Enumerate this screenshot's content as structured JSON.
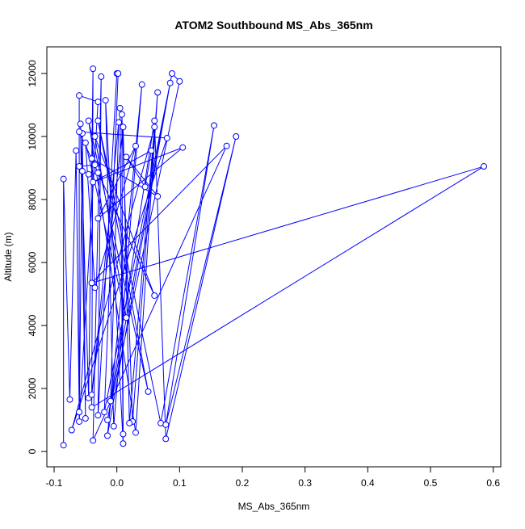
{
  "chart_data": {
    "type": "scatter",
    "title": "ATOM2 Southbound MS_Abs_365nm",
    "xlabel": "MS_Abs_365nm",
    "ylabel": "Altitude (m)",
    "xlim": [
      -0.1116,
      0.612
    ],
    "ylim": [
      -487,
      12846
    ],
    "xticks": [
      -0.1,
      {
        "value": 0,
        "label": "0.0"
      },
      0.1,
      0.2,
      0.3,
      0.4,
      0.5,
      0.6
    ],
    "yticks": [
      0,
      2000,
      4000,
      6000,
      8000,
      10000,
      12000
    ],
    "series": [
      {
        "color": "#0000ff",
        "x": [
          -0.085,
          -0.085,
          -0.075,
          -0.065,
          -0.06,
          -0.06,
          -0.03,
          -0.06,
          -0.055,
          -0.05,
          -0.058,
          -0.045,
          -0.038,
          -0.04,
          0.585,
          -0.04,
          0.175,
          -0.038,
          -0.025,
          -0.03,
          0,
          0.002,
          -0.02,
          0.088,
          0.1,
          -0.015,
          0.085,
          -0.015,
          0.04,
          -0.005,
          -0.018,
          0.01,
          0.005,
          0.01,
          0.008,
          0.025,
          0.065,
          0.03,
          -0.045,
          0.05,
          -0.03,
          0.07,
          0.155,
          0.078,
          0.19,
          0.078,
          0.06,
          -0.01,
          0.003,
          -0.04,
          0.01,
          0.02,
          0.06,
          -0.072,
          0.08,
          -0.06,
          0.06,
          -0.035,
          0.015,
          -0.05,
          -0.035,
          0.03,
          -0.03,
          0.105,
          -0.038,
          0.055,
          0.045,
          0.015,
          0.065,
          -0.04,
          -0.035,
          -0.06,
          -0.055,
          -0.045,
          -0.03
        ],
        "y": [
          200,
          8650,
          1650,
          9550,
          1250,
          11300,
          11100,
          950,
          10100,
          1050,
          10400,
          1700,
          12150,
          1400,
          9050,
          5350,
          9700,
          350,
          11900,
          1150,
          12000,
          12000,
          1250,
          12000,
          11750,
          1000,
          11700,
          500,
          11650,
          800,
          11150,
          250,
          10900,
          550,
          10700,
          950,
          11400,
          600,
          10500,
          1900,
          10500,
          900,
          10350,
          850,
          10000,
          400,
          10500,
          1600,
          10450,
          1800,
          10300,
          900,
          10300,
          680,
          9950,
          10150,
          4950,
          10000,
          4250,
          9800,
          5200,
          9700,
          7400,
          9650,
          8550,
          9550,
          8400,
          9350,
          8100,
          9300,
          9100,
          9050,
          8900,
          8800,
          8850
        ]
      }
    ]
  }
}
